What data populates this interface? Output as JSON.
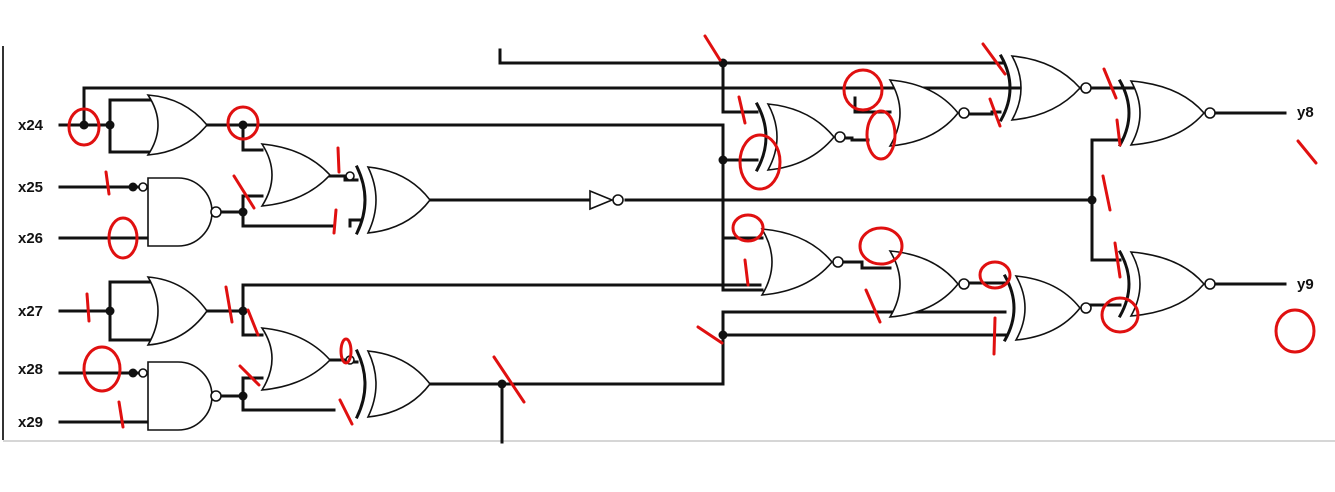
{
  "circuit": {
    "inputs": [
      "x24",
      "x25",
      "x26",
      "x27",
      "x28",
      "x29"
    ],
    "outputs": [
      "y8",
      "y9"
    ]
  },
  "colors": {
    "wire": "#111111",
    "annotation": "#e01010",
    "background": "#ffffff"
  },
  "annotation_marks": [
    "tick",
    "circle"
  ]
}
